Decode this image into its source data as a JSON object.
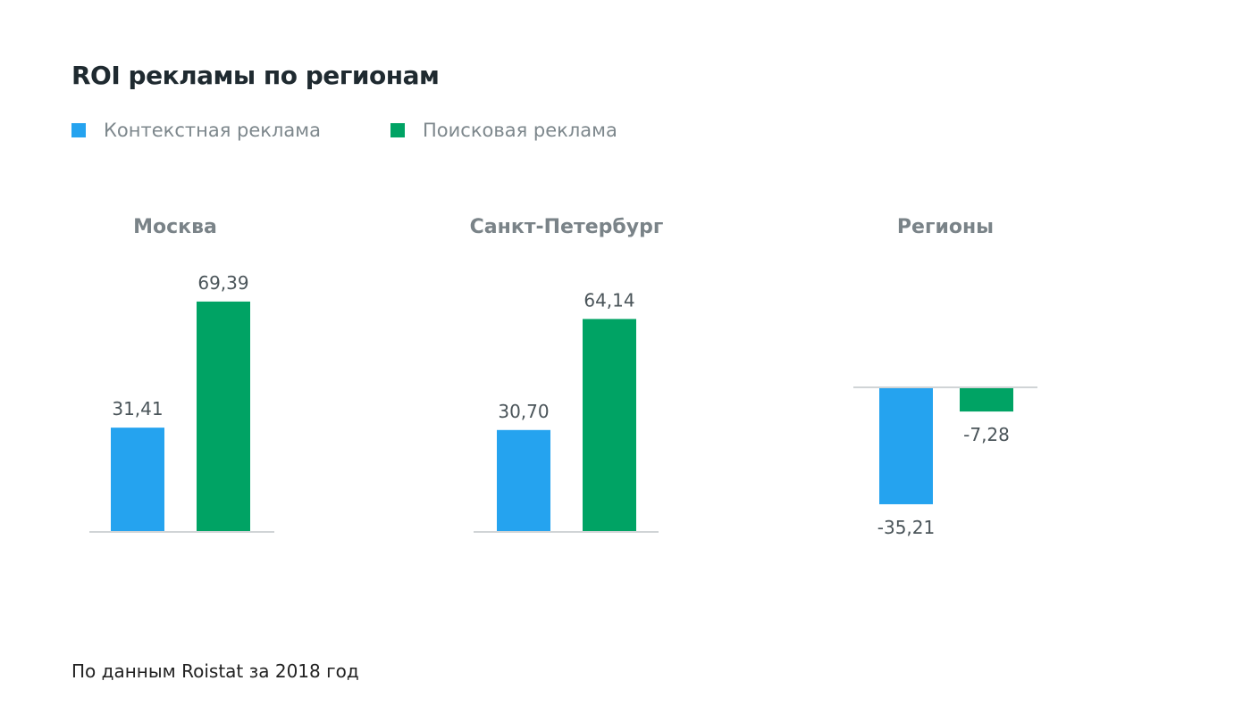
{
  "title": "ROI рекламы по регионам",
  "footer": "По данным Roistat за 2018 год",
  "colors": {
    "context": "#25a3ef",
    "search": "#00a364",
    "axis": "#d0d4d6"
  },
  "chart_data": {
    "type": "bar",
    "title": "ROI рекламы по регионам",
    "legend": [
      "Контекстная реклама",
      "Поисковая реклама"
    ],
    "legend_position": "top-left",
    "categories": [
      "Москва",
      "Санкт-Петербург",
      "Регионы"
    ],
    "series": [
      {
        "name": "Контекстная реклама",
        "values": [
          31.41,
          30.7,
          -35.21
        ],
        "labels": [
          "31,41",
          "30,70",
          "-35,21"
        ]
      },
      {
        "name": "Поисковая реклама",
        "values": [
          69.39,
          64.14,
          -7.28
        ],
        "labels": [
          "69,39",
          "64,14",
          "-7,28"
        ]
      }
    ],
    "xlabel": "",
    "ylabel": "",
    "grid": false
  }
}
